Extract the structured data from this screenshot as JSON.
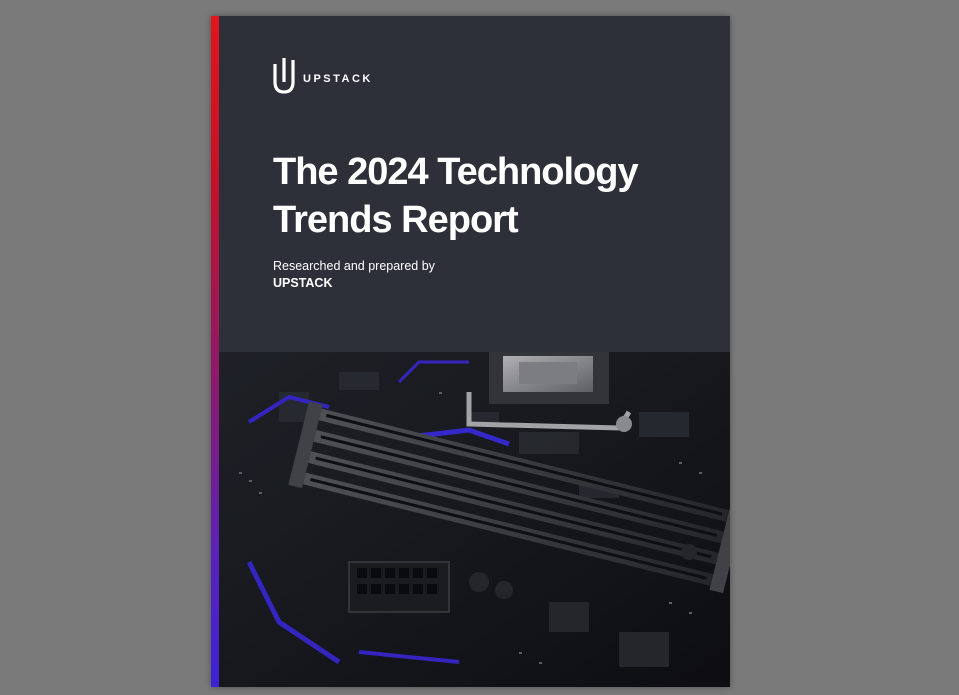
{
  "viewer": {
    "background_color": "#7a7a7a"
  },
  "cover": {
    "logo": {
      "icon": "upstack-logo-mark-icon",
      "text": "UPSTACK"
    },
    "title_line1": "The 2024 Technology",
    "title_line2": "Trends Report",
    "byline": {
      "prefix": "Researched and prepared by",
      "company": "UPSTACK"
    },
    "image": {
      "subject": "motherboard-photo-icon"
    },
    "colors": {
      "panel": "#2d3039",
      "accent_top": "#e2151c",
      "accent_bottom": "#3d22d6",
      "text": "#ffffff"
    }
  }
}
